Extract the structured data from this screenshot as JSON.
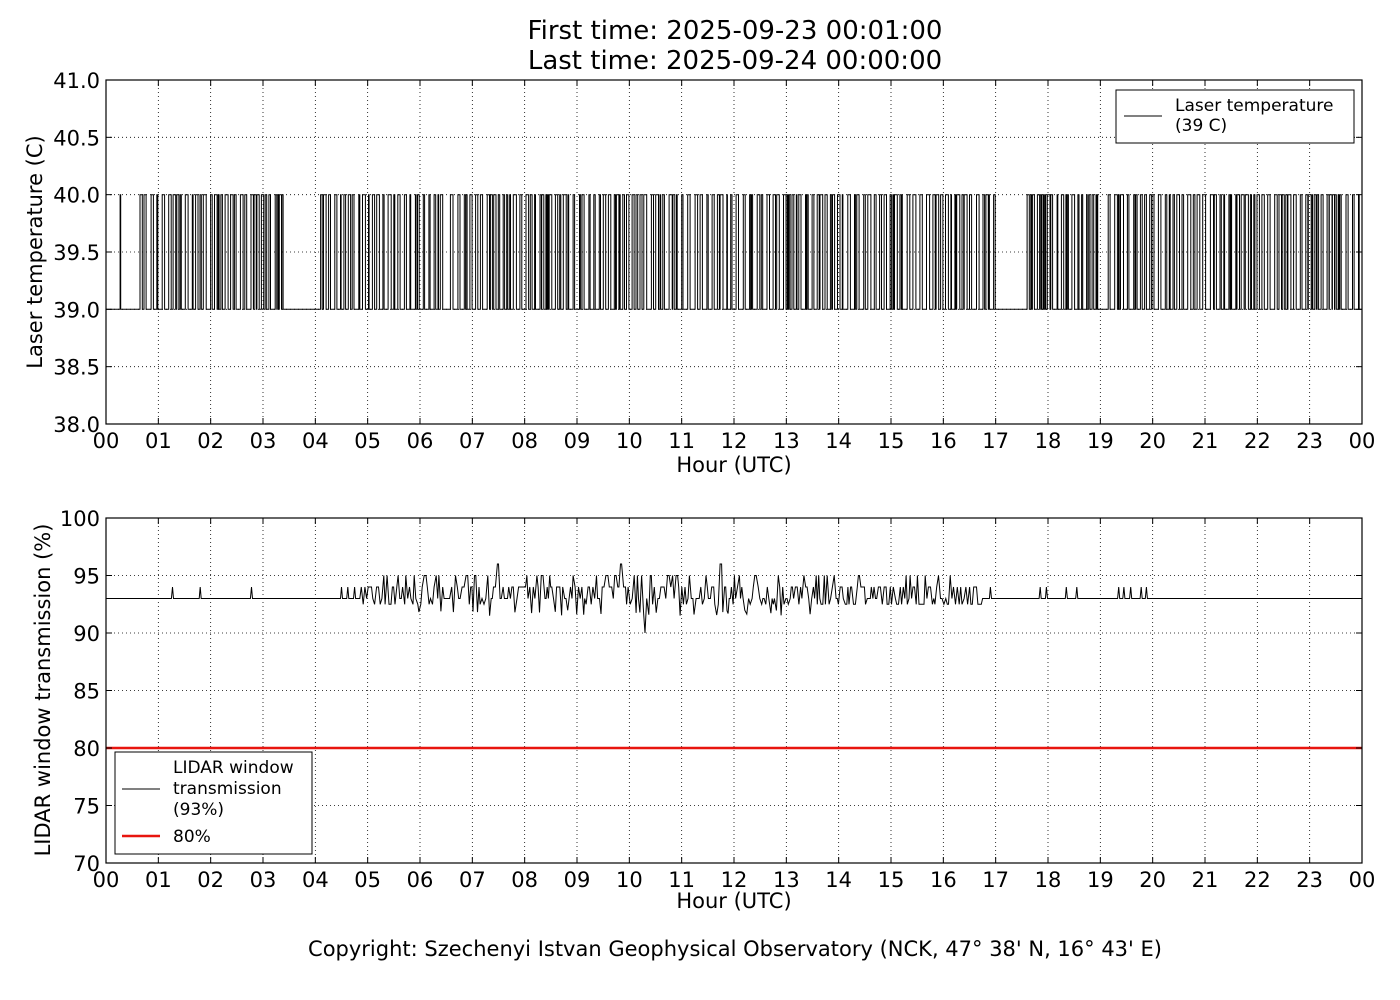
{
  "figure": {
    "title_line1": "First time: 2025-09-23 00:01:00",
    "title_line2": "Last time: 2025-09-24 00:00:00",
    "copyright": "Copyright: Szechenyi Istvan Geophysical Observatory (NCK, 47° 38' N, 16° 43' E)"
  },
  "chart_data": [
    {
      "type": "line",
      "xlabel": "Hour (UTC)",
      "ylabel": "Laser temperature (C)",
      "x_ticks": [
        "00",
        "01",
        "02",
        "03",
        "04",
        "05",
        "06",
        "07",
        "08",
        "09",
        "10",
        "11",
        "12",
        "13",
        "14",
        "15",
        "16",
        "17",
        "18",
        "19",
        "20",
        "21",
        "22",
        "23",
        "00"
      ],
      "y_ticks": [
        "41.0",
        "40.5",
        "40.0",
        "39.5",
        "39.0",
        "38.5",
        "38.0"
      ],
      "xlim": [
        0,
        24
      ],
      "ylim": [
        38.0,
        41.0
      ],
      "grid": true,
      "legend_position": "top-right",
      "series": [
        {
          "name": "Laser temperature",
          "legend_line2": "(39 C)",
          "color": "#000000",
          "baseline": 39.0,
          "spike_value": 40.0,
          "x_start": 0.0,
          "x_end": 24.0,
          "quiet_hours": [
            [
              0.3,
              0.64
            ],
            [
              3.4,
              4.1
            ],
            [
              6.45,
              6.58
            ],
            [
              15.98,
              16.1
            ],
            [
              17.0,
              17.6
            ],
            [
              18.95,
              19.15
            ]
          ],
          "dense_hours": [
            [
              0.65,
              3.4
            ],
            [
              4.1,
              6.45
            ],
            [
              6.58,
              17.0
            ],
            [
              17.6,
              18.95
            ],
            [
              19.15,
              24.0
            ]
          ]
        }
      ]
    },
    {
      "type": "line",
      "xlabel": "Hour (UTC)",
      "ylabel": "LIDAR window transmission (%)",
      "x_ticks": [
        "00",
        "01",
        "02",
        "03",
        "04",
        "05",
        "06",
        "07",
        "08",
        "09",
        "10",
        "11",
        "12",
        "13",
        "14",
        "15",
        "16",
        "17",
        "18",
        "19",
        "20",
        "21",
        "22",
        "23",
        "00"
      ],
      "y_ticks": [
        "100",
        "95",
        "90",
        "85",
        "80",
        "75",
        "70"
      ],
      "xlim": [
        0,
        24
      ],
      "ylim": [
        70,
        100
      ],
      "grid": true,
      "legend_position": "bottom-left",
      "series": [
        {
          "name": "LIDAR window transmission (93%)",
          "legend_lines": [
            "LIDAR window",
            "transmission",
            "(93%)"
          ],
          "color": "#000000",
          "baseline": 93,
          "isolated_spikes": [
            1.27,
            1.8,
            2.78,
            4.5,
            4.62,
            4.75,
            16.9,
            17.85,
            17.97,
            18.35,
            18.55,
            19.35,
            19.45,
            19.58,
            19.78,
            19.88
          ],
          "noisy_range": [
            4.85,
            16.75
          ],
          "extremes": [
            {
              "x": 7.5,
              "y": 96
            },
            {
              "x": 9.85,
              "y": 96
            },
            {
              "x": 10.3,
              "y": 90
            },
            {
              "x": 11.75,
              "y": 96
            }
          ]
        },
        {
          "name": "80%",
          "color": "#e8150f",
          "constant": 80
        }
      ]
    }
  ]
}
